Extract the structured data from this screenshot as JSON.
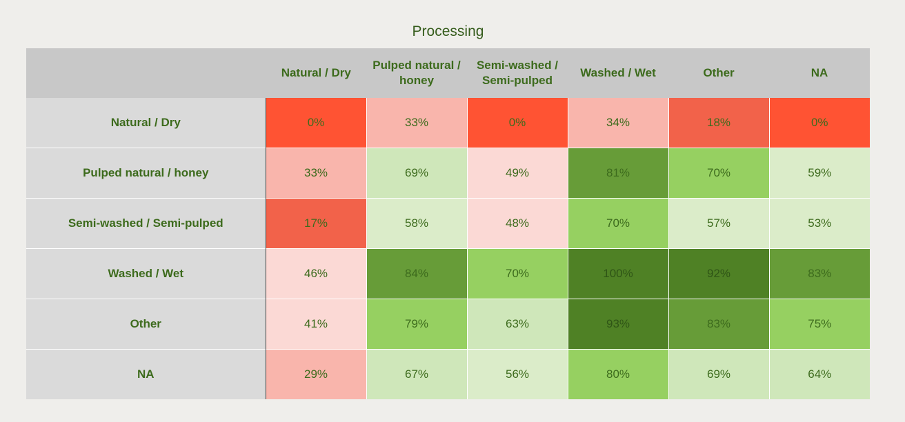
{
  "chart_data": {
    "type": "heatmap",
    "title": "Processing",
    "columns": [
      "Natural / Dry",
      "Pulped natural / honey",
      "Semi-washed / Semi-pulped",
      "Washed / Wet",
      "Other",
      "NA"
    ],
    "rows": [
      "Natural / Dry",
      "Pulped natural / honey",
      "Semi-washed / Semi-pulped",
      "Washed / Wet",
      "Other",
      "NA"
    ],
    "values": [
      [
        0,
        33,
        0,
        34,
        18,
        0
      ],
      [
        33,
        69,
        49,
        81,
        70,
        59
      ],
      [
        17,
        58,
        48,
        70,
        57,
        53
      ],
      [
        46,
        84,
        70,
        100,
        92,
        83
      ],
      [
        41,
        79,
        63,
        93,
        83,
        75
      ],
      [
        29,
        67,
        56,
        80,
        69,
        64
      ]
    ],
    "value_labels": [
      [
        "0%",
        "33%",
        "0%",
        "34%",
        "18%",
        "0%"
      ],
      [
        "33%",
        "69%",
        "49%",
        "81%",
        "70%",
        "59%"
      ],
      [
        "17%",
        "58%",
        "48%",
        "70%",
        "57%",
        "53%"
      ],
      [
        "46%",
        "84%",
        "70%",
        "100%",
        "92%",
        "83%"
      ],
      [
        "41%",
        "79%",
        "63%",
        "93%",
        "83%",
        "75%"
      ],
      [
        "29%",
        "67%",
        "56%",
        "80%",
        "69%",
        "64%"
      ]
    ],
    "colors": {
      "strong_red": "#ff5333",
      "red": "#f2624a",
      "light_red": "#f9b5ac",
      "pale_red": "#fbd9d5",
      "pale_green": "#dbecc9",
      "light_green": "#cfe7ba",
      "green": "#96d061",
      "dark_green": "#679c38",
      "darkest_green": "#4f8125"
    }
  }
}
